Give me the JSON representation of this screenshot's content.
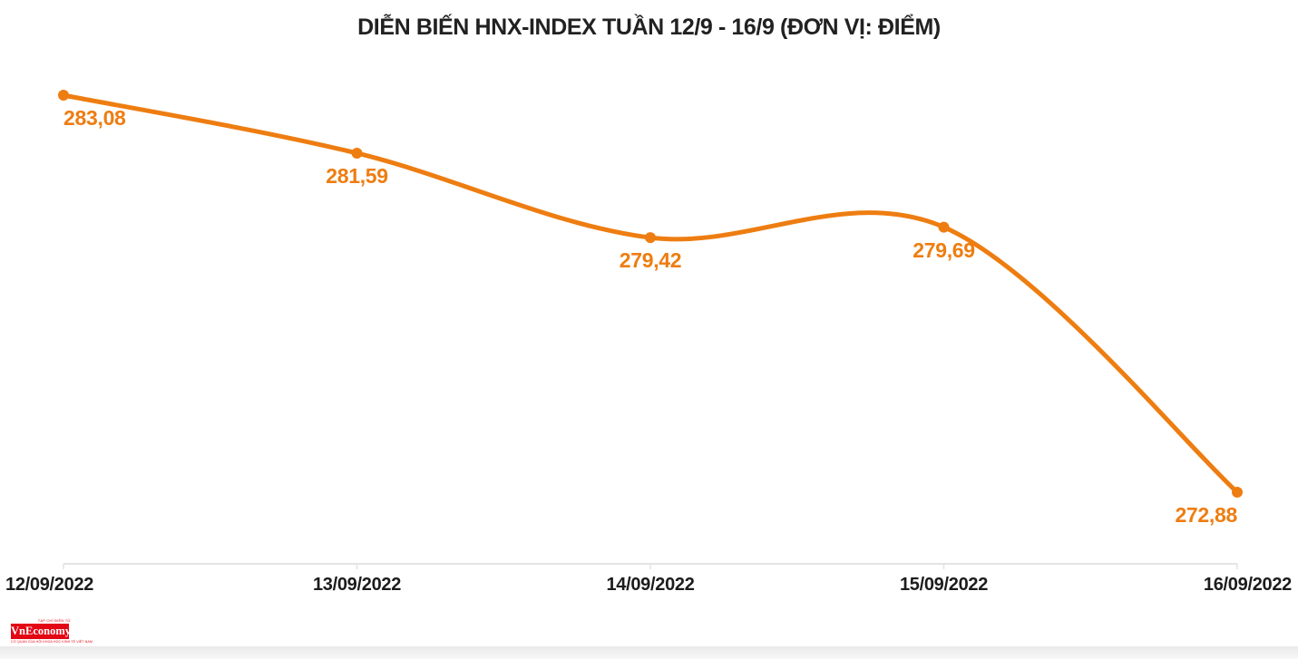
{
  "title": "DIỄN BIẾN HNX-INDEX TUẦN 12/9 - 16/9 (ĐƠN VỊ: ĐIỂM)",
  "chart_data": {
    "type": "line",
    "smooth": true,
    "title": "DIỄN BIẾN HNX-INDEX TUẦN 12/9 - 16/9 (ĐƠN VỊ: ĐIỂM)",
    "categories": [
      "12/09/2022",
      "13/09/2022",
      "14/09/2022",
      "15/09/2022",
      "16/09/2022"
    ],
    "series": [
      {
        "name": "HNX-Index",
        "values": [
          283.08,
          281.59,
          279.42,
          279.69,
          272.88
        ]
      }
    ],
    "value_labels": [
      "283,08",
      "281,59",
      "279,42",
      "279,69",
      "272,88"
    ],
    "xlabel": "",
    "ylabel": "",
    "unit": "ĐIỂM",
    "ylim": [
      271,
      283.5
    ],
    "grid": false,
    "legend_position": "none",
    "line_color": "#EE7D11",
    "point_color": "#EE7D11",
    "value_label_color": "#EE7D11",
    "axis_line_color": "#e3e3e3",
    "axis_text_color": "#1c1c1c",
    "title_color": "#212121"
  },
  "logo": {
    "tagline_top": "TẠP CHÍ ĐIỆN TỬ",
    "name": "VnEconomy",
    "tagline_bottom": "CƠ QUAN CỦA HỘI KHOA HỌC KINH TẾ VIỆT NAM",
    "bg_color": "#e30613"
  }
}
